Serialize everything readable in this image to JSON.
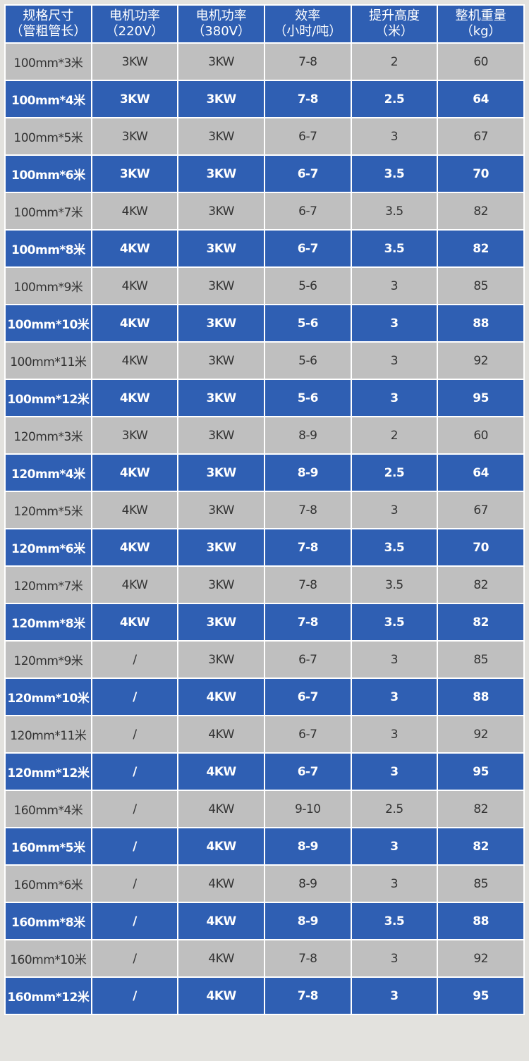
{
  "colors": {
    "header": "#2f5fb3",
    "row_blue": "#2f5fb3",
    "row_grey": "#bfbfbf",
    "background": "#e3e2de"
  },
  "headers": [
    [
      "规格尺寸",
      "（管粗管长）"
    ],
    [
      "电机功率",
      "（220V）"
    ],
    [
      "电机功率",
      "（380V）"
    ],
    [
      "效率",
      "（小时/吨）"
    ],
    [
      "提升高度",
      "（米）"
    ],
    [
      "整机重量",
      "（kg）"
    ]
  ],
  "rows": [
    [
      "100mm*3米",
      "3KW",
      "3KW",
      "7-8",
      "2",
      "60"
    ],
    [
      "100mm*4米",
      "3KW",
      "3KW",
      "7-8",
      "2.5",
      "64"
    ],
    [
      "100mm*5米",
      "3KW",
      "3KW",
      "6-7",
      "3",
      "67"
    ],
    [
      "100mm*6米",
      "3KW",
      "3KW",
      "6-7",
      "3.5",
      "70"
    ],
    [
      "100mm*7米",
      "4KW",
      "3KW",
      "6-7",
      "3.5",
      "82"
    ],
    [
      "100mm*8米",
      "4KW",
      "3KW",
      "6-7",
      "3.5",
      "82"
    ],
    [
      "100mm*9米",
      "4KW",
      "3KW",
      "5-6",
      "3",
      "85"
    ],
    [
      "100mm*10米",
      "4KW",
      "3KW",
      "5-6",
      "3",
      "88"
    ],
    [
      "100mm*11米",
      "4KW",
      "3KW",
      "5-6",
      "3",
      "92"
    ],
    [
      "100mm*12米",
      "4KW",
      "3KW",
      "5-6",
      "3",
      "95"
    ],
    [
      "120mm*3米",
      "3KW",
      "3KW",
      "8-9",
      "2",
      "60"
    ],
    [
      "120mm*4米",
      "4KW",
      "3KW",
      "8-9",
      "2.5",
      "64"
    ],
    [
      "120mm*5米",
      "4KW",
      "3KW",
      "7-8",
      "3",
      "67"
    ],
    [
      "120mm*6米",
      "4KW",
      "3KW",
      "7-8",
      "3.5",
      "70"
    ],
    [
      "120mm*7米",
      "4KW",
      "3KW",
      "7-8",
      "3.5",
      "82"
    ],
    [
      "120mm*8米",
      "4KW",
      "3KW",
      "7-8",
      "3.5",
      "82"
    ],
    [
      "120mm*9米",
      "/",
      "3KW",
      "6-7",
      "3",
      "85"
    ],
    [
      "120mm*10米",
      "/",
      "4KW",
      "6-7",
      "3",
      "88"
    ],
    [
      "120mm*11米",
      "/",
      "4KW",
      "6-7",
      "3",
      "92"
    ],
    [
      "120mm*12米",
      "/",
      "4KW",
      "6-7",
      "3",
      "95"
    ],
    [
      "160mm*4米",
      "/",
      "4KW",
      "9-10",
      "2.5",
      "82"
    ],
    [
      "160mm*5米",
      "/",
      "4KW",
      "8-9",
      "3",
      "82"
    ],
    [
      "160mm*6米",
      "/",
      "4KW",
      "8-9",
      "3",
      "85"
    ],
    [
      "160mm*8米",
      "/",
      "4KW",
      "8-9",
      "3.5",
      "88"
    ],
    [
      "160mm*10米",
      "/",
      "4KW",
      "7-8",
      "3",
      "92"
    ],
    [
      "160mm*12米",
      "/",
      "4KW",
      "7-8",
      "3",
      "95"
    ]
  ]
}
